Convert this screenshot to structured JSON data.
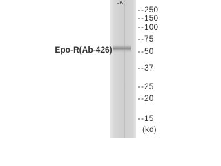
{
  "lane_label": "JK",
  "band_label": "Epo-R(Ab-426)",
  "markers": [
    "250",
    "150",
    "100",
    "75",
    "50",
    "37",
    "25",
    "20",
    "15"
  ],
  "unit": "(kd)"
}
